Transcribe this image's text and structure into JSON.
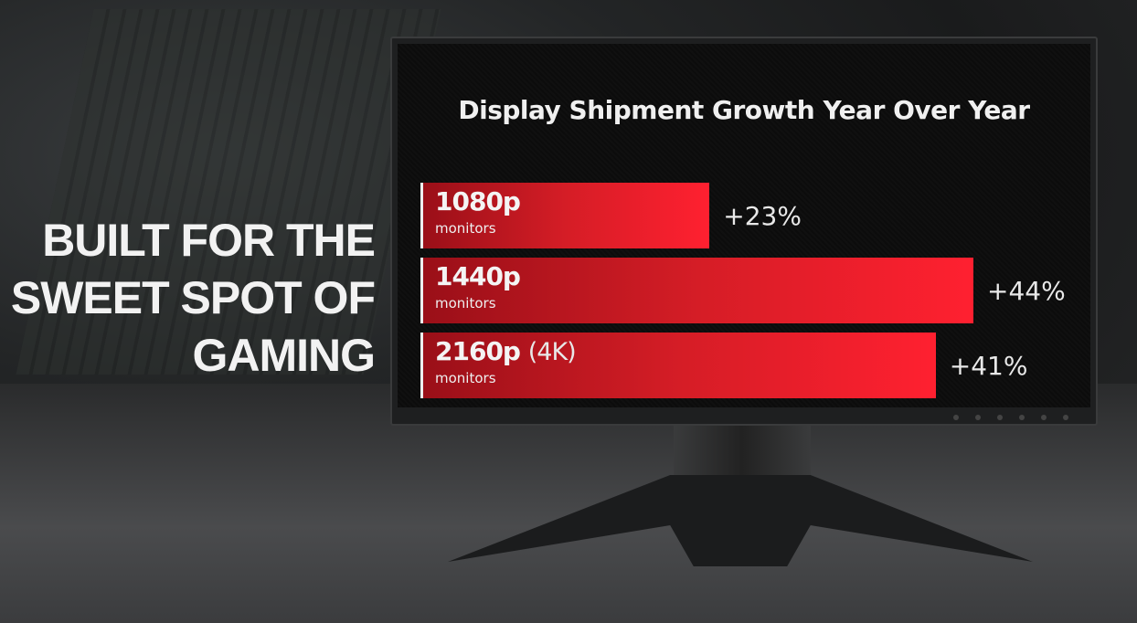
{
  "headline": [
    "BUILT FOR THE",
    "SWEET SPOT OF",
    "GAMING"
  ],
  "chart_data": {
    "type": "bar",
    "orientation": "horizontal",
    "title": "Display Shipment Growth Year Over Year",
    "categories": [
      {
        "label": "1080p",
        "suffix": "",
        "sublabel": "monitors"
      },
      {
        "label": "1440p",
        "suffix": "",
        "sublabel": "monitors"
      },
      {
        "label": "2160p",
        "suffix": "(4K)",
        "sublabel": "monitors"
      }
    ],
    "values": [
      23,
      44,
      41
    ],
    "value_labels": [
      "+23%",
      "+44%",
      "+41%"
    ],
    "unit": "%",
    "bar_color": "#ff2030"
  }
}
